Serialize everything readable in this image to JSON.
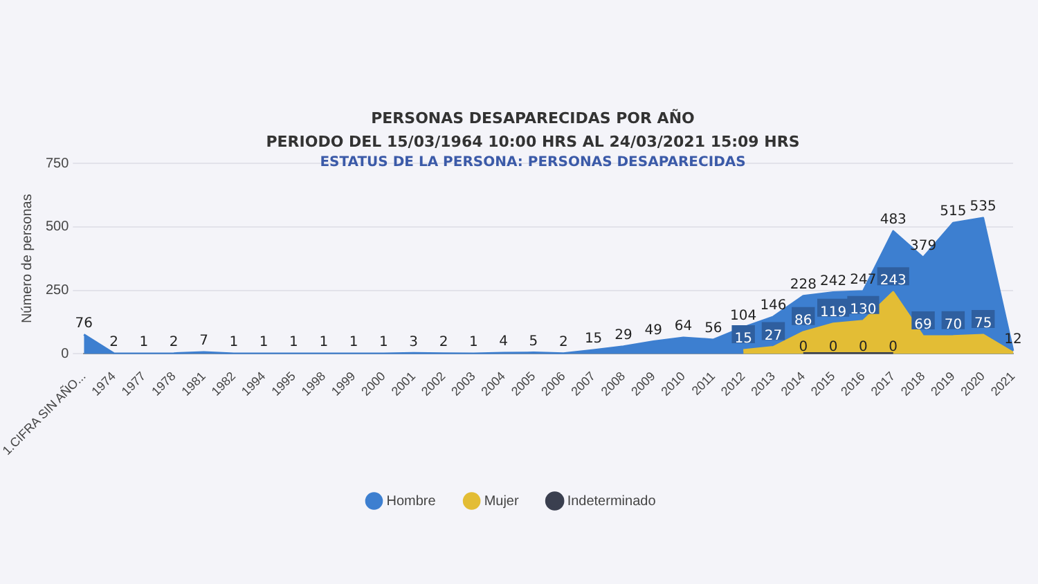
{
  "chart_data": {
    "type": "area",
    "title": "PERSONAS DESAPARECIDAS POR AÑO",
    "subtitle": "PERIODO DEL 15/03/1964 10:00 HRS AL 24/03/2021 15:09 HRS",
    "annotations": [
      "ESTATUS DE LA PERSONA: PERSONAS DESAPARECIDAS"
    ],
    "ylabel": "Número de personas",
    "categories": [
      "1.CIFRA SIN AÑO...",
      "1974",
      "1977",
      "1978",
      "1981",
      "1982",
      "1994",
      "1995",
      "1998",
      "1999",
      "2000",
      "2001",
      "2002",
      "2003",
      "2004",
      "2005",
      "2006",
      "2007",
      "2008",
      "2009",
      "2010",
      "2011",
      "2012",
      "2013",
      "2014",
      "2015",
      "2016",
      "2017",
      "2018",
      "2019",
      "2020",
      "2021"
    ],
    "series": [
      {
        "name": "Hombre",
        "color": "#3d7fd0",
        "values": [
          76,
          2,
          1,
          2,
          7,
          1,
          1,
          1,
          1,
          1,
          1,
          3,
          2,
          1,
          4,
          5,
          2,
          15,
          29,
          49,
          64,
          56,
          104,
          146,
          228,
          242,
          247,
          483,
          379,
          515,
          535,
          12
        ],
        "value_labels": [
          "76",
          "2",
          "1",
          "2",
          "7",
          "1",
          "1",
          "1",
          "1",
          "1",
          "1",
          "3",
          "2",
          "1",
          "4",
          "5",
          "2",
          "15",
          "29",
          "49",
          "64",
          "56",
          "104",
          "146",
          "228",
          "242",
          "247",
          "483",
          "379",
          "515",
          "535",
          "12"
        ]
      },
      {
        "name": "Mujer",
        "color": "#e3bd35",
        "values": [
          null,
          null,
          null,
          null,
          null,
          null,
          null,
          null,
          null,
          null,
          null,
          null,
          null,
          null,
          null,
          null,
          null,
          null,
          null,
          null,
          null,
          null,
          15,
          27,
          86,
          119,
          130,
          243,
          69,
          70,
          75,
          5
        ],
        "value_labels": [
          null,
          null,
          null,
          null,
          null,
          null,
          null,
          null,
          null,
          null,
          null,
          null,
          null,
          null,
          null,
          null,
          null,
          null,
          null,
          null,
          null,
          null,
          "15",
          "27",
          "86",
          "119",
          "130",
          "243",
          "69",
          "70",
          "75",
          null
        ]
      },
      {
        "name": "Indeterminado",
        "type": "line",
        "color": "#3a3f4f",
        "values": [
          null,
          null,
          null,
          null,
          null,
          null,
          null,
          null,
          null,
          null,
          null,
          null,
          null,
          null,
          null,
          null,
          null,
          null,
          null,
          null,
          null,
          null,
          null,
          null,
          0,
          0,
          0,
          0,
          null,
          null,
          null,
          null
        ],
        "value_labels": [
          null,
          null,
          null,
          null,
          null,
          null,
          null,
          null,
          null,
          null,
          null,
          null,
          null,
          null,
          null,
          null,
          null,
          null,
          null,
          null,
          null,
          null,
          null,
          null,
          "0",
          "0",
          "0",
          "0",
          null,
          null,
          null,
          null
        ]
      }
    ],
    "ylim": [
      0,
      750
    ],
    "yticks": [
      0,
      250,
      500,
      750
    ],
    "grid": "y",
    "legend": "bottom",
    "marker": "none"
  }
}
